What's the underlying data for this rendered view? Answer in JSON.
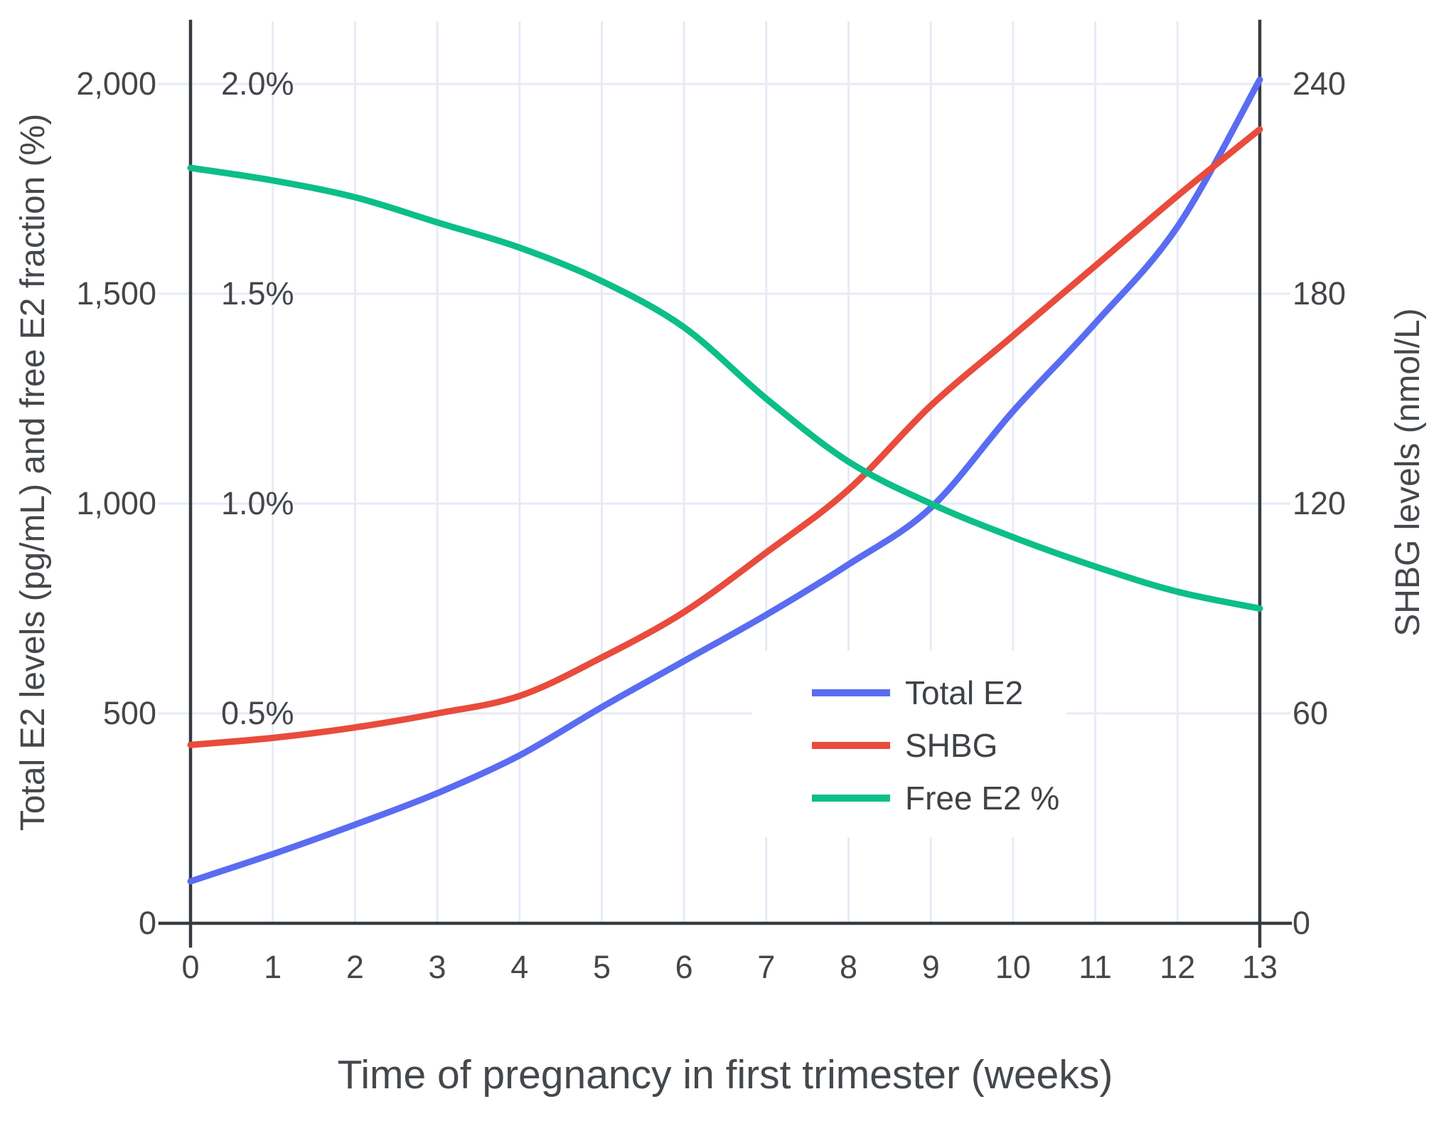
{
  "chart_data": {
    "type": "line",
    "title": "",
    "xlabel": "Time of pregnancy in first trimester (weeks)",
    "ylabel_left": "Total E2 levels (pg/mL) and free E2 fraction (%)",
    "ylabel_right": "SHBG levels (nmol/L)",
    "x": [
      0,
      1,
      2,
      3,
      4,
      5,
      6,
      7,
      8,
      9,
      10,
      11,
      12,
      13
    ],
    "x_tick_labels": [
      "0",
      "1",
      "2",
      "3",
      "4",
      "5",
      "6",
      "7",
      "8",
      "9",
      "10",
      "11",
      "12",
      "13"
    ],
    "x_range": [
      0,
      13
    ],
    "y_left_range": [
      0,
      2000
    ],
    "y_right_range": [
      0,
      240
    ],
    "y_left_ticks": [
      {
        "value": 0,
        "label": "0"
      },
      {
        "value": 500,
        "label": "500"
      },
      {
        "value": 1000,
        "label": "1,000"
      },
      {
        "value": 1500,
        "label": "1,500"
      },
      {
        "value": 2000,
        "label": "2,000"
      }
    ],
    "y_right_ticks": [
      {
        "value": 0,
        "label": "0"
      },
      {
        "value": 60,
        "label": "60"
      },
      {
        "value": 120,
        "label": "120"
      },
      {
        "value": 180,
        "label": "180"
      },
      {
        "value": 240,
        "label": "240"
      }
    ],
    "pct_annotations": [
      {
        "label": "0.5%",
        "left_axis_value": 500
      },
      {
        "label": "1.0%",
        "left_axis_value": 1000
      },
      {
        "label": "1.5%",
        "left_axis_value": 1500
      },
      {
        "label": "2.0%",
        "left_axis_value": 2000
      }
    ],
    "series": [
      {
        "name": "Total E2",
        "axis": "left",
        "color": "#5A6CF1",
        "values": [
          100,
          165,
          235,
          310,
          400,
          515,
          625,
          735,
          855,
          990,
          1220,
          1430,
          1660,
          2010
        ]
      },
      {
        "name": "SHBG",
        "axis": "right",
        "color": "#E94B3C",
        "values": [
          51,
          53,
          56,
          60,
          65,
          76,
          89,
          106,
          124,
          148,
          168,
          188,
          208,
          227
        ]
      },
      {
        "name": "Free E2 %",
        "axis": "left_percent",
        "color": "#0CBE87",
        "percent_to_left_axis_factor": 1000,
        "values": [
          1.8,
          1.77,
          1.73,
          1.67,
          1.61,
          1.53,
          1.42,
          1.25,
          1.1,
          1.0,
          0.92,
          0.85,
          0.79,
          0.75
        ]
      }
    ],
    "legend": {
      "position": "inside-bottom-right",
      "entries": [
        "Total E2",
        "SHBG",
        "Free E2 %"
      ]
    },
    "grid": true,
    "colors": {
      "grid": "#E7EBF6",
      "axis_line": "#363B41",
      "tick_text": "#444649",
      "title_text": "#44484C",
      "legend_text": "#3F4347",
      "legend_bg": "#FFFFFF",
      "background": "#FFFFFF"
    }
  }
}
